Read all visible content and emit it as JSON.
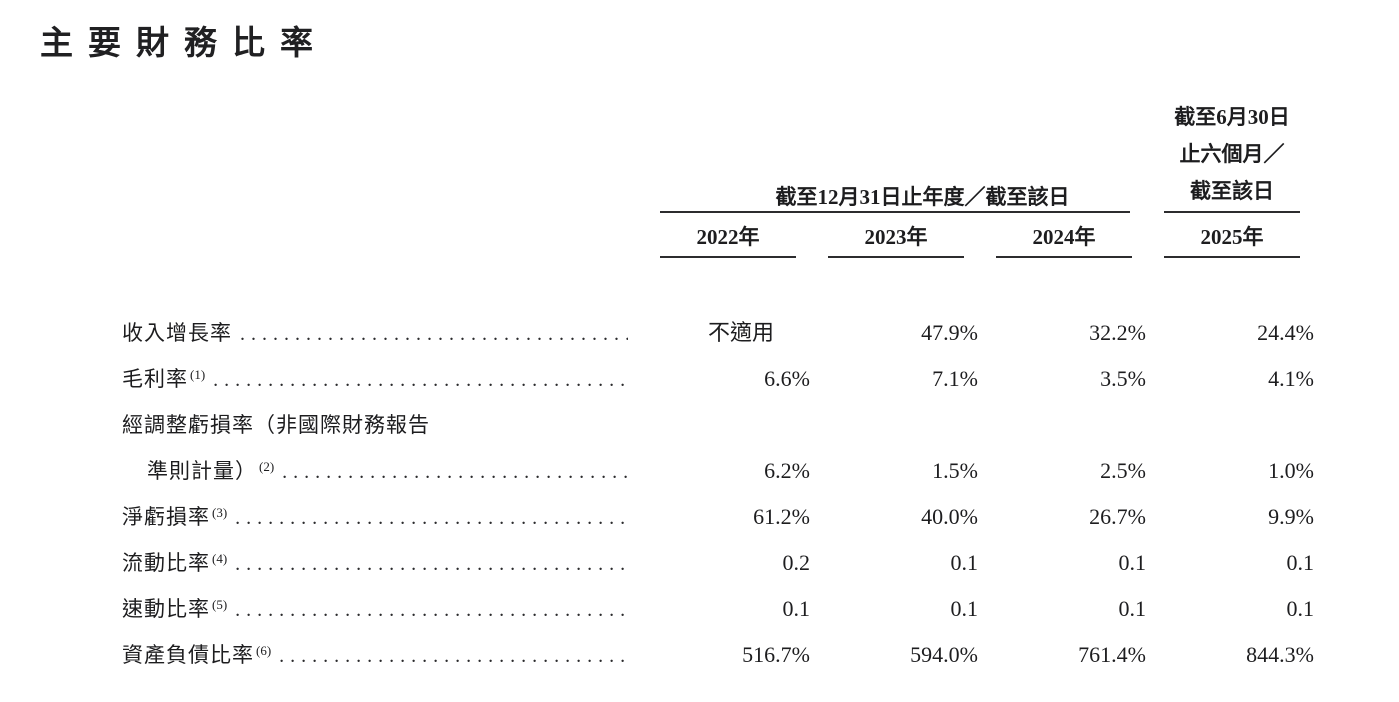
{
  "title": "主要財務比率",
  "table": {
    "period_annual_header": "截至12月31日止年度／截至該日",
    "period_interim_header_lines": [
      "截至6月30日",
      "止六個月／",
      "截至該日"
    ],
    "year_headers": [
      "2022年",
      "2023年",
      "2024年",
      "2025年"
    ],
    "rows": [
      {
        "label": "收入增長率",
        "sup": "",
        "values": [
          "不適用",
          "47.9%",
          "32.2%",
          "24.4%"
        ]
      },
      {
        "label": "毛利率",
        "sup": "(1)",
        "values": [
          "6.6%",
          "7.1%",
          "3.5%",
          "4.1%"
        ]
      },
      {
        "label_line1": "經調整虧損率（非國際財務報告",
        "label_line2": "準則計量）",
        "sup": "(2)",
        "values": [
          "6.2%",
          "1.5%",
          "2.5%",
          "1.0%"
        ]
      },
      {
        "label": "淨虧損率",
        "sup": "(3)",
        "values": [
          "61.2%",
          "40.0%",
          "26.7%",
          "9.9%"
        ]
      },
      {
        "label": "流動比率",
        "sup": "(4)",
        "values": [
          "0.2",
          "0.1",
          "0.1",
          "0.1"
        ]
      },
      {
        "label": "速動比率",
        "sup": "(5)",
        "values": [
          "0.1",
          "0.1",
          "0.1",
          "0.1"
        ]
      },
      {
        "label": "資產負債比率",
        "sup": "(6)",
        "values": [
          "516.7%",
          "594.0%",
          "761.4%",
          "844.3%"
        ]
      }
    ]
  }
}
